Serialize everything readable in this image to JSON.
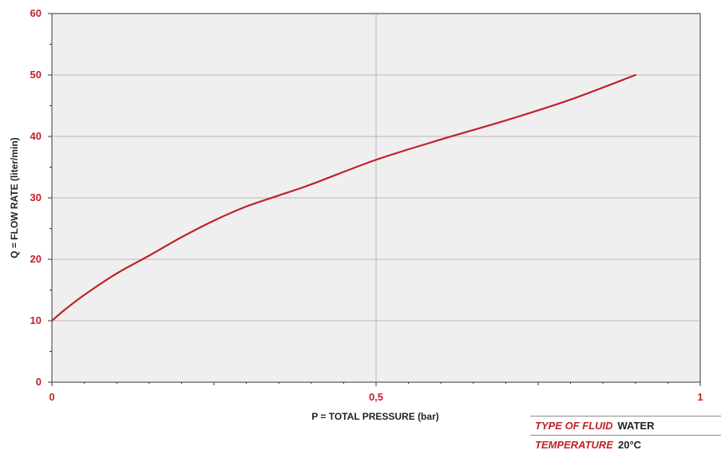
{
  "chart_data": {
    "type": "line",
    "title": "",
    "xlabel": "P = TOTAL PRESSURE (bar)",
    "ylabel": "Q = FLOW RATE (liter/min)",
    "xlim": [
      0,
      1
    ],
    "ylim": [
      0,
      60
    ],
    "x_ticks": [
      "0",
      "0,5",
      "1"
    ],
    "y_ticks": [
      "0",
      "10",
      "20",
      "30",
      "40",
      "50",
      "60"
    ],
    "grid": true,
    "series": [
      {
        "color": "#c0202a",
        "x": [
          0,
          0.02,
          0.05,
          0.1,
          0.15,
          0.2,
          0.25,
          0.3,
          0.35,
          0.4,
          0.5,
          0.6,
          0.7,
          0.8,
          0.9
        ],
        "y": [
          10,
          11.8,
          14.2,
          17.7,
          20.6,
          23.6,
          26.3,
          28.6,
          30.4,
          32.2,
          36.2,
          39.5,
          42.6,
          46.0,
          50.0
        ]
      }
    ]
  },
  "info_table": [
    {
      "label": "TYPE OF FLUID",
      "value": "WATER"
    },
    {
      "label": "TEMPERATURE",
      "value": "20°C"
    }
  ]
}
